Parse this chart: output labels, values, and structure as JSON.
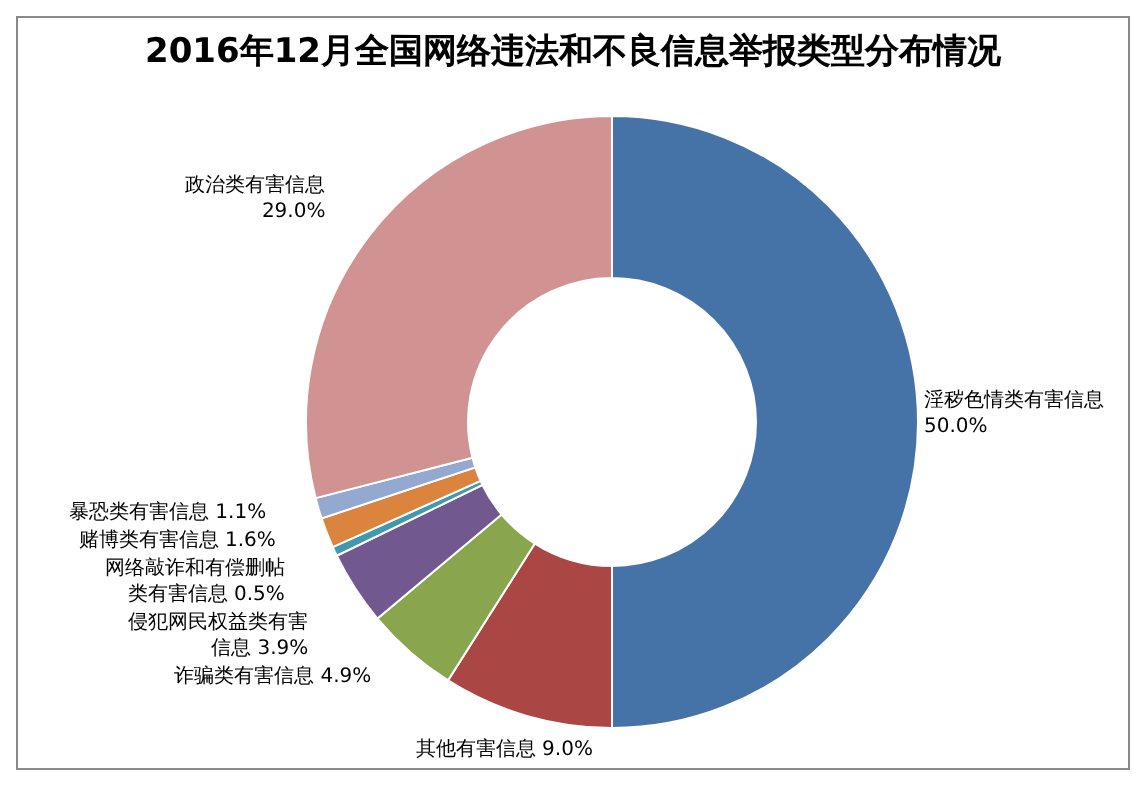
{
  "chart_data": {
    "type": "donut",
    "title": "2016年12月全国网络违法和不良信息举报类型分布情况",
    "categories": [
      "淫秽色情类有害信息",
      "其他有害信息",
      "诈骗类有害信息",
      "侵犯网民权益类有害信息",
      "网络敲诈和有偿删帖类有害信息",
      "赌博类有害信息",
      "暴恐类有害信息",
      "政治类有害信息"
    ],
    "values": [
      50.0,
      9.0,
      4.9,
      3.9,
      0.5,
      1.6,
      1.1,
      29.0
    ],
    "value_labels": [
      "50.0%",
      "9.0%",
      "4.9%",
      "3.9%",
      "0.5%",
      "1.6%",
      "1.1%",
      "29.0%"
    ],
    "colors": [
      "#4572a7",
      "#aa4643",
      "#89a54e",
      "#71588f",
      "#4198af",
      "#db843d",
      "#93a9cf",
      "#d19392"
    ],
    "legend": false
  }
}
